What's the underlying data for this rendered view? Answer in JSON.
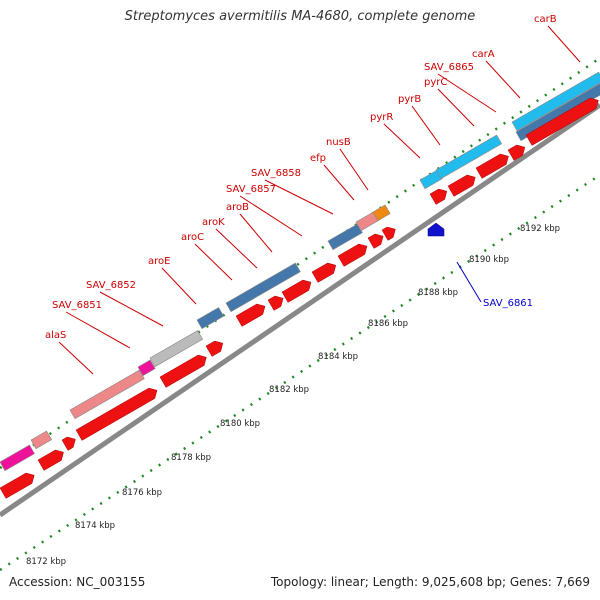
{
  "title": "Streptomyces avermitilis MA-4680, complete genome",
  "footer": {
    "accession": "Accession: NC_003155",
    "topology": "Topology: linear; Length: 9,025,608 bp; Genes: 7,669"
  },
  "ruler": {
    "ticks": [
      {
        "label": "8172 kbp",
        "kb": 8172
      },
      {
        "label": "8174 kbp",
        "kb": 8174
      },
      {
        "label": "8176 kbp",
        "kb": 8176
      },
      {
        "label": "8178 kbp",
        "kb": 8178
      },
      {
        "label": "8180 kbp",
        "kb": 8180
      },
      {
        "label": "8182 kbp",
        "kb": 8182
      },
      {
        "label": "8184 kbp",
        "kb": 8184
      },
      {
        "label": "8186 kbp",
        "kb": 8186
      },
      {
        "label": "8188 kbp",
        "kb": 8188
      },
      {
        "label": "8190 kbp",
        "kb": 8190
      },
      {
        "label": "8192 kbp",
        "kb": 8192
      }
    ]
  },
  "gene_labels": [
    {
      "name": "alaS",
      "color": "#cc0000"
    },
    {
      "name": "SAV_6851",
      "color": "#cc0000"
    },
    {
      "name": "SAV_6852",
      "color": "#cc0000"
    },
    {
      "name": "aroE",
      "color": "#cc0000"
    },
    {
      "name": "aroC",
      "color": "#cc0000"
    },
    {
      "name": "aroK",
      "color": "#cc0000"
    },
    {
      "name": "aroB",
      "color": "#cc0000"
    },
    {
      "name": "SAV_6857",
      "color": "#cc0000"
    },
    {
      "name": "SAV_6858",
      "color": "#cc0000"
    },
    {
      "name": "efp",
      "color": "#cc0000"
    },
    {
      "name": "nusB",
      "color": "#cc0000"
    },
    {
      "name": "pyrR",
      "color": "#cc0000"
    },
    {
      "name": "pyrB",
      "color": "#cc0000"
    },
    {
      "name": "pyrC",
      "color": "#cc0000"
    },
    {
      "name": "SAV_6865",
      "color": "#cc0000"
    },
    {
      "name": "carA",
      "color": "#cc0000"
    },
    {
      "name": "carB",
      "color": "#cc0000"
    },
    {
      "name": "SAV_6861",
      "color": "#0000cc"
    }
  ],
  "colors": {
    "cds": "#ee1111",
    "reverse_cds": "#1111cc",
    "backbone": "#888888",
    "ruler_tick": "#228822",
    "cog_light_blue": "#22bbee",
    "cog_steel_blue": "#4477aa",
    "cog_pink": "#ee8888",
    "cog_magenta": "#ee1199",
    "cog_gray": "#bbbbbb",
    "cog_orange": "#ee8811"
  }
}
